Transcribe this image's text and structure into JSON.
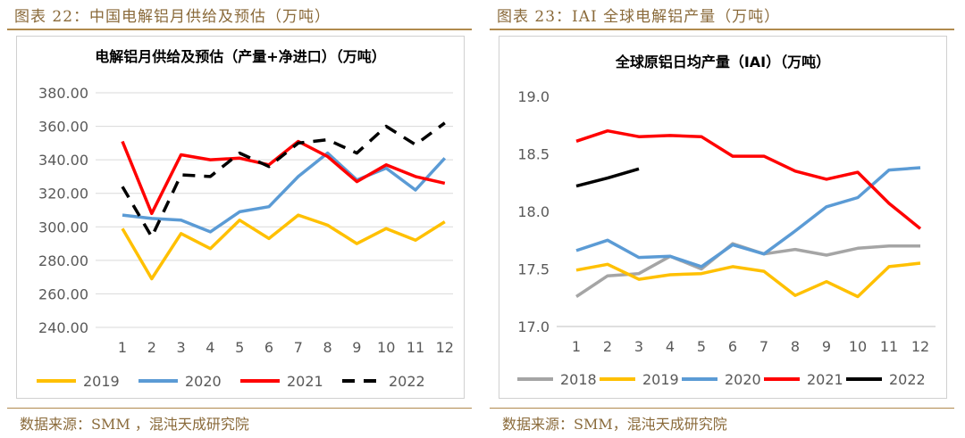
{
  "left": {
    "figure_title": "图表 22：中国电解铝月供给及预估（万吨）",
    "source": "数据来源：SMM ，混沌天成研究院"
  },
  "right": {
    "figure_title": "图表 23：IAI 全球电解铝产量（万吨）",
    "source": "数据来源：SMM，混沌天成研究院"
  },
  "chart_data": [
    {
      "type": "line",
      "title": "电解铝月供给及预估（产量+净进口）（万吨）",
      "xlabel": "",
      "ylabel": "",
      "x": [
        "1",
        "2",
        "3",
        "4",
        "5",
        "6",
        "7",
        "8",
        "9",
        "10",
        "11",
        "12"
      ],
      "yticks": [
        "380.00",
        "360.00",
        "340.00",
        "320.00",
        "300.00",
        "280.00",
        "260.00",
        "240.00"
      ],
      "ylim": [
        240,
        380
      ],
      "grid": true,
      "legend": "bottom",
      "series": [
        {
          "name": "2019",
          "color": "#FFC000",
          "dash": false,
          "values": [
            299,
            269,
            296,
            287,
            304,
            293,
            307,
            301,
            290,
            299,
            292,
            303
          ]
        },
        {
          "name": "2020",
          "color": "#5B9BD5",
          "dash": false,
          "values": [
            307,
            305,
            304,
            297,
            309,
            312,
            330,
            344,
            328,
            335,
            322,
            341
          ]
        },
        {
          "name": "2021",
          "color": "#FF0000",
          "dash": false,
          "values": [
            351,
            308,
            343,
            340,
            341,
            337,
            351,
            342,
            327,
            337,
            330,
            326
          ]
        },
        {
          "name": "2022",
          "color": "#000000",
          "dash": true,
          "values": [
            324,
            294,
            331,
            330,
            344,
            336,
            350,
            352,
            344,
            360,
            349,
            362
          ]
        }
      ]
    },
    {
      "type": "line",
      "title": "全球原铝日均产量（IAI）（万吨）",
      "xlabel": "",
      "ylabel": "",
      "x": [
        "1",
        "2",
        "3",
        "4",
        "5",
        "6",
        "7",
        "8",
        "9",
        "10",
        "11",
        "12"
      ],
      "yticks": [
        "19.0",
        "18.5",
        "18.0",
        "17.5",
        "17.0"
      ],
      "ylim": [
        17.0,
        19.0
      ],
      "grid": false,
      "legend": "bottom",
      "series": [
        {
          "name": "2018",
          "color": "#A5A5A5",
          "dash": false,
          "values": [
            17.26,
            17.44,
            17.46,
            17.61,
            17.5,
            17.72,
            17.63,
            17.67,
            17.62,
            17.68,
            17.7,
            17.7
          ]
        },
        {
          "name": "2019",
          "color": "#FFC000",
          "dash": false,
          "values": [
            17.49,
            17.54,
            17.41,
            17.45,
            17.46,
            17.52,
            17.48,
            17.27,
            17.39,
            17.26,
            17.52,
            17.55
          ]
        },
        {
          "name": "2020",
          "color": "#5B9BD5",
          "dash": false,
          "values": [
            17.66,
            17.75,
            17.6,
            17.61,
            17.52,
            17.71,
            17.63,
            17.83,
            18.04,
            18.12,
            18.36,
            18.38
          ]
        },
        {
          "name": "2021",
          "color": "#FF0000",
          "dash": false,
          "values": [
            18.61,
            18.7,
            18.65,
            18.66,
            18.65,
            18.48,
            18.48,
            18.35,
            18.28,
            18.34,
            18.07,
            17.85
          ]
        },
        {
          "name": "2022",
          "color": "#000000",
          "dash": false,
          "values": [
            18.22,
            18.29,
            18.37,
            null,
            null,
            null,
            null,
            null,
            null,
            null,
            null,
            null
          ]
        }
      ]
    }
  ]
}
